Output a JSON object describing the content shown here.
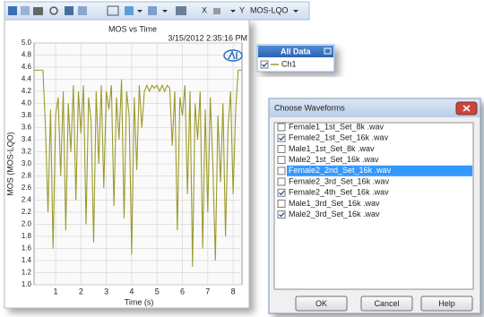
{
  "toolbar": {
    "x_button": "X",
    "y_button": "Y",
    "measure": "MOS-LQO"
  },
  "chart_data": {
    "type": "line",
    "title": "MOS vs Time",
    "timestamp": "3/15/2012 2:35:16 PM",
    "x_label": "Time (s)",
    "y_label": "MOS (MOS-LQO)",
    "xlim": [
      0.15,
      8.35
    ],
    "ylim": [
      1.0,
      5.0
    ],
    "xticks": [
      1,
      2,
      3,
      4,
      5,
      6,
      7,
      8
    ],
    "yticks": [
      {
        "value": 1,
        "label": "1.0"
      },
      1.2,
      1.4,
      1.6,
      1.8,
      {
        "value": 2,
        "label": "2.0"
      },
      2.2,
      2.4,
      2.6,
      2.8,
      {
        "value": 3,
        "label": "3.0"
      },
      3.2,
      3.4,
      3.6,
      3.8,
      {
        "value": 4,
        "label": "4.0"
      },
      4.2,
      4.4,
      4.6,
      4.8,
      {
        "value": 5,
        "label": "5.0"
      }
    ],
    "grid": true,
    "x": [
      0.15,
      0.5,
      0.6,
      0.7,
      0.8,
      0.9,
      1.0,
      1.1,
      1.2,
      1.3,
      1.4,
      1.5,
      1.6,
      1.7,
      1.8,
      1.9,
      2.0,
      2.1,
      2.2,
      2.3,
      2.4,
      2.5,
      2.6,
      2.7,
      2.8,
      2.9,
      3.0,
      3.1,
      3.2,
      3.3,
      3.4,
      3.5,
      3.6,
      3.7,
      3.8,
      3.9,
      4.0,
      4.1,
      4.2,
      4.3,
      4.4,
      4.5,
      4.6,
      4.7,
      4.8,
      4.9,
      5.0,
      5.1,
      5.2,
      5.3,
      5.4,
      5.5,
      5.6,
      5.7,
      5.8,
      5.9,
      6.0,
      6.1,
      6.2,
      6.3,
      6.4,
      6.5,
      6.6,
      6.7,
      6.8,
      6.9,
      7.0,
      7.1,
      7.2,
      7.3,
      7.4,
      7.5,
      7.6,
      7.7,
      7.8,
      7.9,
      8.0,
      8.1,
      8.2,
      8.35
    ],
    "series": [
      {
        "name": "Ch1",
        "color": "#9b9a2c",
        "values": [
          4.55,
          4.55,
          3.6,
          2.2,
          3.9,
          1.6,
          3.8,
          4.1,
          2.8,
          4.2,
          1.9,
          4.0,
          3.2,
          4.3,
          2.4,
          4.2,
          3.5,
          4.3,
          2.0,
          4.1,
          3.7,
          1.7,
          4.2,
          3.0,
          4.3,
          2.6,
          4.2,
          3.9,
          4.3,
          2.3,
          4.1,
          3.4,
          4.4,
          2.1,
          4.2,
          3.8,
          1.5,
          4.1,
          2.9,
          4.3,
          3.6,
          4.2,
          4.3,
          4.2,
          4.3,
          4.25,
          4.3,
          4.2,
          4.3,
          4.2,
          4.3,
          4.25,
          3.3,
          4.2,
          1.9,
          4.1,
          3.8,
          4.3,
          2.5,
          4.2,
          1.3,
          4.0,
          3.4,
          4.2,
          1.6,
          3.9,
          2.2,
          4.1,
          3.0,
          1.4,
          3.8,
          2.7,
          4.0,
          1.8,
          3.6,
          4.2,
          2.5,
          3.9,
          4.55,
          4.55
        ]
      }
    ]
  },
  "legend_panel": {
    "title": "All Data"
  },
  "dialog": {
    "title": "Choose Waveforms",
    "items": [
      {
        "label": "Female1_1st_Set_8k .wav",
        "checked": false
      },
      {
        "label": "Female2_1st_Set_16k .wav",
        "checked": true
      },
      {
        "label": "Male1_1st_Set_8k .wav",
        "checked": false
      },
      {
        "label": "Male2_1st_Set_16k .wav",
        "checked": false
      },
      {
        "label": "Female2_2nd_Set_16k .wav",
        "checked": false,
        "selected": true
      },
      {
        "label": "Female2_3rd_Set_16k .wav",
        "checked": false
      },
      {
        "label": "Female2_4th_Set_16k .wav",
        "checked": true
      },
      {
        "label": "Male1_3rd_Set_16k .wav",
        "checked": false
      },
      {
        "label": "Male2_3rd_Set_16k .wav",
        "checked": true
      }
    ],
    "buttons": [
      "OK",
      "Cancel",
      "Help"
    ]
  }
}
